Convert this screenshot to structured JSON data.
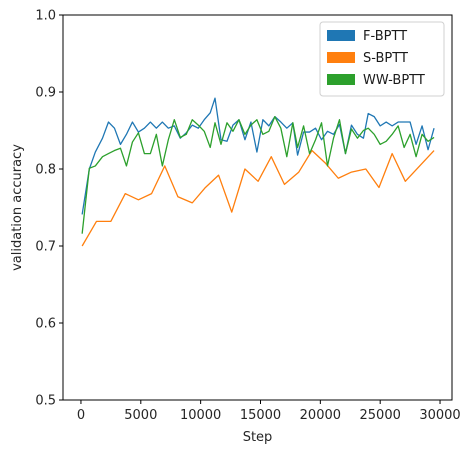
{
  "chart_data": {
    "type": "line",
    "title": "",
    "xlabel": "Step",
    "ylabel": "validation accuracy",
    "xlim": [
      -1500,
      31000
    ],
    "ylim": [
      0.5,
      1.0
    ],
    "xticks": [
      0,
      5000,
      10000,
      15000,
      20000,
      25000,
      30000
    ],
    "yticks": [
      0.5,
      0.6,
      0.7,
      0.8,
      0.9,
      1.0
    ],
    "xtick_labels": [
      "0",
      "5000",
      "10000",
      "15000",
      "20000",
      "25000",
      "30000"
    ],
    "ytick_labels": [
      "0.5",
      "0.6",
      "0.7",
      "0.8",
      "0.9",
      "1.0"
    ],
    "grid": false,
    "legend_position": "top-right",
    "series": [
      {
        "name": "F-BPTT",
        "color": "#1f77b4",
        "points": [
          [
            100,
            0.741
          ],
          [
            700,
            0.8
          ],
          [
            1200,
            0.822
          ],
          [
            1800,
            0.84
          ],
          [
            2300,
            0.861
          ],
          [
            2800,
            0.853
          ],
          [
            3300,
            0.832
          ],
          [
            3800,
            0.845
          ],
          [
            4300,
            0.861
          ],
          [
            4800,
            0.848
          ],
          [
            5300,
            0.853
          ],
          [
            5800,
            0.861
          ],
          [
            6300,
            0.853
          ],
          [
            6800,
            0.861
          ],
          [
            7300,
            0.853
          ],
          [
            7800,
            0.856
          ],
          [
            8300,
            0.84
          ],
          [
            8800,
            0.847
          ],
          [
            9300,
            0.857
          ],
          [
            9800,
            0.853
          ],
          [
            10300,
            0.864
          ],
          [
            10800,
            0.873
          ],
          [
            11200,
            0.892
          ],
          [
            11700,
            0.838
          ],
          [
            12200,
            0.836
          ],
          [
            12700,
            0.857
          ],
          [
            13200,
            0.864
          ],
          [
            13700,
            0.838
          ],
          [
            14200,
            0.861
          ],
          [
            14700,
            0.822
          ],
          [
            15200,
            0.864
          ],
          [
            15700,
            0.856
          ],
          [
            16200,
            0.868
          ],
          [
            16700,
            0.861
          ],
          [
            17200,
            0.853
          ],
          [
            17700,
            0.86
          ],
          [
            18100,
            0.818
          ],
          [
            18600,
            0.848
          ],
          [
            19100,
            0.848
          ],
          [
            19600,
            0.853
          ],
          [
            20100,
            0.838
          ],
          [
            20600,
            0.849
          ],
          [
            21100,
            0.845
          ],
          [
            21600,
            0.858
          ],
          [
            22100,
            0.82
          ],
          [
            22600,
            0.857
          ],
          [
            23100,
            0.845
          ],
          [
            23600,
            0.84
          ],
          [
            24000,
            0.872
          ],
          [
            24500,
            0.868
          ],
          [
            25000,
            0.856
          ],
          [
            25500,
            0.861
          ],
          [
            26000,
            0.856
          ],
          [
            26500,
            0.861
          ],
          [
            27000,
            0.861
          ],
          [
            27500,
            0.861
          ],
          [
            28000,
            0.832
          ],
          [
            28500,
            0.856
          ],
          [
            29000,
            0.825
          ],
          [
            29500,
            0.853
          ]
        ]
      },
      {
        "name": "S-BPTT",
        "color": "#ff7f0e",
        "points": [
          [
            100,
            0.7
          ],
          [
            1300,
            0.732
          ],
          [
            2500,
            0.732
          ],
          [
            3700,
            0.768
          ],
          [
            4800,
            0.76
          ],
          [
            5900,
            0.768
          ],
          [
            7000,
            0.804
          ],
          [
            8100,
            0.764
          ],
          [
            9300,
            0.756
          ],
          [
            10400,
            0.776
          ],
          [
            11500,
            0.792
          ],
          [
            12600,
            0.744
          ],
          [
            13700,
            0.8
          ],
          [
            14800,
            0.784
          ],
          [
            15900,
            0.816
          ],
          [
            17000,
            0.78
          ],
          [
            18200,
            0.796
          ],
          [
            19300,
            0.824
          ],
          [
            20400,
            0.808
          ],
          [
            21500,
            0.788
          ],
          [
            22600,
            0.796
          ],
          [
            23800,
            0.8
          ],
          [
            24900,
            0.776
          ],
          [
            26000,
            0.82
          ],
          [
            27100,
            0.784
          ],
          [
            28300,
            0.804
          ],
          [
            29500,
            0.824
          ]
        ]
      },
      {
        "name": "WW-BPTT",
        "color": "#2ca02c",
        "points": [
          [
            100,
            0.716
          ],
          [
            700,
            0.801
          ],
          [
            1200,
            0.804
          ],
          [
            1800,
            0.816
          ],
          [
            2300,
            0.82
          ],
          [
            2800,
            0.824
          ],
          [
            3300,
            0.827
          ],
          [
            3800,
            0.804
          ],
          [
            4300,
            0.835
          ],
          [
            4800,
            0.847
          ],
          [
            5300,
            0.82
          ],
          [
            5800,
            0.82
          ],
          [
            6300,
            0.845
          ],
          [
            6800,
            0.804
          ],
          [
            7300,
            0.838
          ],
          [
            7800,
            0.864
          ],
          [
            8300,
            0.841
          ],
          [
            8800,
            0.845
          ],
          [
            9300,
            0.864
          ],
          [
            9800,
            0.857
          ],
          [
            10300,
            0.849
          ],
          [
            10800,
            0.828
          ],
          [
            11200,
            0.86
          ],
          [
            11700,
            0.832
          ],
          [
            12200,
            0.86
          ],
          [
            12700,
            0.849
          ],
          [
            13200,
            0.864
          ],
          [
            13700,
            0.845
          ],
          [
            14200,
            0.857
          ],
          [
            14700,
            0.864
          ],
          [
            15200,
            0.845
          ],
          [
            15700,
            0.849
          ],
          [
            16200,
            0.868
          ],
          [
            16700,
            0.853
          ],
          [
            17200,
            0.816
          ],
          [
            17700,
            0.86
          ],
          [
            18100,
            0.828
          ],
          [
            18600,
            0.856
          ],
          [
            19100,
            0.82
          ],
          [
            19600,
            0.838
          ],
          [
            20100,
            0.86
          ],
          [
            20600,
            0.804
          ],
          [
            21100,
            0.84
          ],
          [
            21600,
            0.864
          ],
          [
            22100,
            0.82
          ],
          [
            22600,
            0.852
          ],
          [
            23100,
            0.84
          ],
          [
            23600,
            0.85
          ],
          [
            24000,
            0.853
          ],
          [
            24500,
            0.845
          ],
          [
            25000,
            0.832
          ],
          [
            25500,
            0.836
          ],
          [
            26000,
            0.845
          ],
          [
            26500,
            0.856
          ],
          [
            27000,
            0.828
          ],
          [
            27500,
            0.845
          ],
          [
            28000,
            0.816
          ],
          [
            28500,
            0.845
          ],
          [
            29000,
            0.836
          ],
          [
            29500,
            0.841
          ]
        ]
      }
    ]
  }
}
